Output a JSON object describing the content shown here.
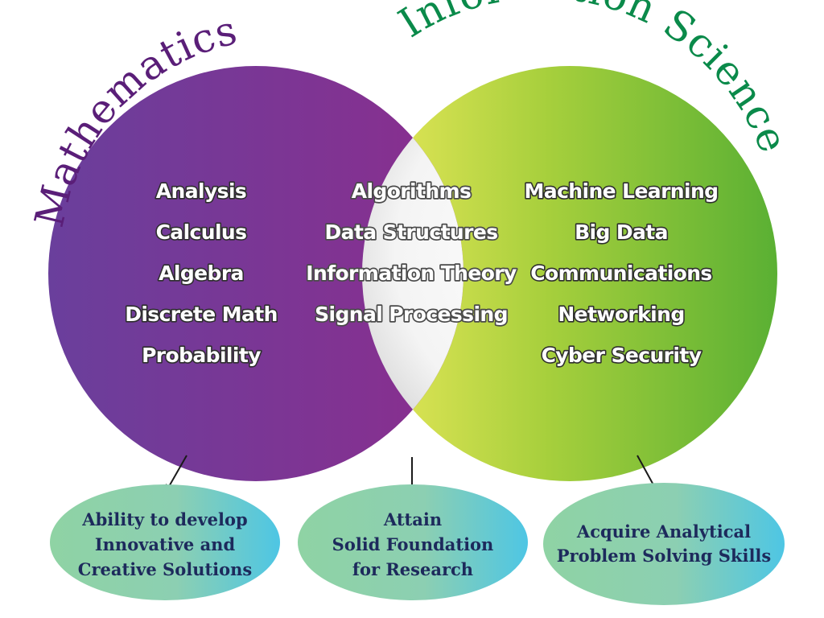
{
  "titles": {
    "left": "Mathematics",
    "right": "Information Science"
  },
  "colors": {
    "left_circle": "#7a2d8f",
    "right_circle": "#7cc242",
    "left_title": "#5a1e78",
    "right_title": "#0a8a4a",
    "outcome_text": "#1d2a5c"
  },
  "left_topics": [
    "Analysis",
    "Calculus",
    "Algebra",
    "Discrete Math",
    "Probability"
  ],
  "middle_topics": [
    "Algorithms",
    "Data Structures",
    "Information Theory",
    "Signal Processing"
  ],
  "right_topics": [
    "Machine Learning",
    "Big Data",
    "Communications",
    "Networking",
    "Cyber Security"
  ],
  "outcomes": [
    {
      "lines": [
        "Ability to develop",
        "Innovative and",
        "Creative Solutions"
      ]
    },
    {
      "lines": [
        "Attain",
        "Solid Foundation",
        "for Research"
      ]
    },
    {
      "lines": [
        "Acquire Analytical",
        "Problem Solving Skills"
      ]
    }
  ]
}
